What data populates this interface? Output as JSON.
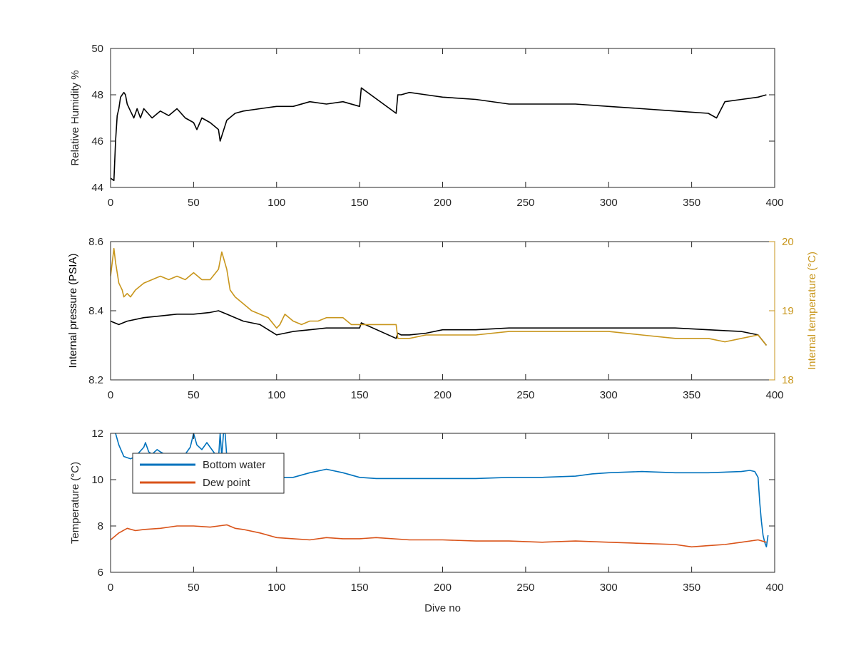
{
  "chart_data": [
    {
      "type": "line",
      "title": "",
      "xlabel": "",
      "ylabel": "Relative Humidity %",
      "xlim": [
        0,
        400
      ],
      "ylim": [
        44,
        50
      ],
      "xticks": [
        0,
        50,
        100,
        150,
        200,
        250,
        300,
        350,
        400
      ],
      "yticks": [
        44,
        46,
        48,
        50
      ],
      "grid": false,
      "series": [
        {
          "color": "#000000",
          "x": [
            0,
            2,
            3,
            4,
            5,
            6,
            7,
            8,
            9,
            10,
            12,
            14,
            16,
            18,
            20,
            25,
            30,
            35,
            40,
            45,
            50,
            52,
            55,
            60,
            65,
            66,
            70,
            75,
            80,
            90,
            100,
            110,
            120,
            130,
            140,
            150,
            151,
            172,
            173,
            175,
            180,
            190,
            200,
            220,
            240,
            260,
            280,
            300,
            320,
            340,
            360,
            365,
            370,
            380,
            390,
            395
          ],
          "y": [
            44.4,
            44.3,
            46.0,
            47.1,
            47.4,
            47.9,
            48.0,
            48.1,
            48.0,
            47.6,
            47.3,
            47.0,
            47.4,
            47.0,
            47.4,
            47.0,
            47.3,
            47.1,
            47.4,
            47.0,
            46.8,
            46.5,
            47.0,
            46.8,
            46.5,
            46.0,
            46.9,
            47.2,
            47.3,
            47.4,
            47.5,
            47.5,
            47.7,
            47.6,
            47.7,
            47.5,
            48.3,
            47.2,
            48.0,
            48.0,
            48.1,
            48.0,
            47.9,
            47.8,
            47.6,
            47.6,
            47.6,
            47.5,
            47.4,
            47.3,
            47.2,
            47.0,
            47.7,
            47.8,
            47.9,
            48.0
          ]
        }
      ]
    },
    {
      "type": "line",
      "title": "",
      "xlabel": "",
      "ylabel": "Internal pressure (PSIA)",
      "ylabel_right": "Internal temperature (°C)",
      "xlim": [
        0,
        400
      ],
      "ylim": [
        8.2,
        8.6
      ],
      "ylim_right": [
        18,
        20
      ],
      "xticks": [
        0,
        50,
        100,
        150,
        200,
        250,
        300,
        350,
        400
      ],
      "yticks": [
        8.2,
        8.4,
        8.6
      ],
      "yticks_right": [
        18,
        19,
        20
      ],
      "grid": false,
      "series": [
        {
          "axis": "left",
          "color": "#000000",
          "x": [
            0,
            5,
            10,
            20,
            30,
            40,
            50,
            60,
            65,
            70,
            75,
            80,
            90,
            95,
            100,
            110,
            120,
            130,
            140,
            150,
            151,
            172,
            173,
            175,
            180,
            190,
            200,
            220,
            240,
            260,
            280,
            300,
            320,
            340,
            360,
            380,
            390,
            395
          ],
          "y": [
            8.37,
            8.36,
            8.37,
            8.38,
            8.385,
            8.39,
            8.39,
            8.395,
            8.4,
            8.39,
            8.38,
            8.37,
            8.36,
            8.345,
            8.33,
            8.34,
            8.345,
            8.35,
            8.35,
            8.35,
            8.365,
            8.32,
            8.335,
            8.33,
            8.33,
            8.335,
            8.345,
            8.345,
            8.35,
            8.35,
            8.35,
            8.35,
            8.35,
            8.35,
            8.345,
            8.34,
            8.33,
            8.3
          ]
        },
        {
          "axis": "right",
          "color": "#c8961c",
          "x": [
            0,
            2,
            3,
            5,
            7,
            8,
            10,
            12,
            15,
            20,
            25,
            30,
            35,
            40,
            45,
            50,
            55,
            60,
            65,
            67,
            70,
            72,
            75,
            80,
            85,
            90,
            95,
            100,
            102,
            105,
            110,
            115,
            120,
            125,
            130,
            135,
            140,
            145,
            150,
            160,
            172,
            173,
            175,
            180,
            190,
            200,
            220,
            240,
            260,
            280,
            300,
            320,
            340,
            360,
            370,
            380,
            390,
            395
          ],
          "y": [
            19.5,
            19.9,
            19.7,
            19.4,
            19.3,
            19.2,
            19.25,
            19.2,
            19.3,
            19.4,
            19.45,
            19.5,
            19.45,
            19.5,
            19.45,
            19.55,
            19.45,
            19.45,
            19.6,
            19.85,
            19.6,
            19.3,
            19.2,
            19.1,
            19.0,
            18.95,
            18.9,
            18.75,
            18.8,
            18.95,
            18.85,
            18.8,
            18.85,
            18.85,
            18.9,
            18.9,
            18.9,
            18.8,
            18.8,
            18.8,
            18.8,
            18.6,
            18.6,
            18.6,
            18.65,
            18.65,
            18.65,
            18.7,
            18.7,
            18.7,
            18.7,
            18.65,
            18.6,
            18.6,
            18.55,
            18.6,
            18.65,
            18.5
          ]
        }
      ]
    },
    {
      "type": "line",
      "title": "",
      "xlabel": "Dive no",
      "ylabel": "Temperature (°C)",
      "xlim": [
        0,
        400
      ],
      "ylim": [
        6,
        12
      ],
      "xticks": [
        0,
        50,
        100,
        150,
        200,
        250,
        300,
        350,
        400
      ],
      "yticks": [
        6,
        8,
        10,
        12
      ],
      "grid": false,
      "legend": {
        "position": "upper-left",
        "entries": [
          "Bottom water",
          "Dew point"
        ]
      },
      "series": [
        {
          "name": "Bottom water",
          "color": "#0072bd",
          "x": [
            3,
            5,
            8,
            12,
            15,
            20,
            21,
            23,
            25,
            28,
            30,
            35,
            40,
            45,
            48,
            50,
            52,
            55,
            58,
            60,
            62,
            65,
            66,
            67,
            68,
            69,
            70,
            75,
            80,
            90,
            100,
            110,
            120,
            130,
            140,
            150,
            160,
            180,
            200,
            220,
            240,
            260,
            280,
            290,
            300,
            320,
            340,
            360,
            380,
            385,
            388,
            390,
            391,
            392,
            393,
            394,
            395,
            396
          ],
          "y": [
            12,
            11.5,
            11.0,
            10.9,
            11.0,
            11.4,
            11.6,
            11.2,
            11.1,
            11.3,
            11.2,
            11.0,
            10.9,
            11.1,
            11.4,
            12.0,
            11.5,
            11.3,
            11.6,
            11.4,
            11.2,
            10.9,
            12.0,
            11.0,
            12.0,
            12.0,
            11.0,
            10.5,
            10.3,
            10.2,
            10.1,
            10.1,
            10.3,
            10.45,
            10.3,
            10.1,
            10.05,
            10.05,
            10.05,
            10.05,
            10.1,
            10.1,
            10.15,
            10.25,
            10.3,
            10.35,
            10.3,
            10.3,
            10.35,
            10.4,
            10.35,
            10.1,
            9.0,
            8.2,
            7.6,
            7.3,
            7.1,
            7.6
          ]
        },
        {
          "name": "Dew point",
          "color": "#d95319",
          "x": [
            0,
            5,
            10,
            15,
            20,
            30,
            40,
            50,
            60,
            65,
            70,
            75,
            80,
            90,
            100,
            110,
            120,
            130,
            140,
            150,
            160,
            180,
            200,
            220,
            240,
            260,
            280,
            300,
            320,
            340,
            350,
            360,
            370,
            380,
            390,
            395
          ],
          "y": [
            7.4,
            7.7,
            7.9,
            7.8,
            7.85,
            7.9,
            8.0,
            8.0,
            7.95,
            8.0,
            8.05,
            7.9,
            7.85,
            7.7,
            7.5,
            7.45,
            7.4,
            7.5,
            7.45,
            7.45,
            7.5,
            7.4,
            7.4,
            7.35,
            7.35,
            7.3,
            7.35,
            7.3,
            7.25,
            7.2,
            7.1,
            7.15,
            7.2,
            7.3,
            7.4,
            7.3
          ]
        }
      ]
    }
  ]
}
